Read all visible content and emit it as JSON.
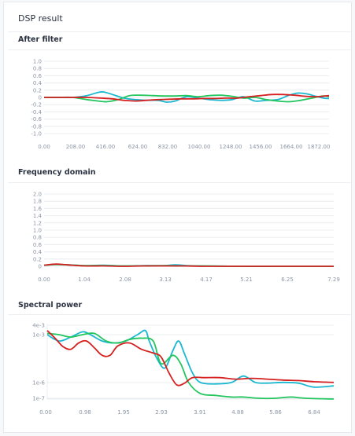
{
  "panel": {
    "title": "DSP result"
  },
  "colors": {
    "series1": "#1ab8d0",
    "series2": "#22c55e",
    "series3": "#d61f1f",
    "grid": "#e9ecef",
    "tick": "#8c95a5"
  },
  "charts": [
    {
      "title": "After filter",
      "chart_data": {
        "type": "line",
        "x_ticks": [
          "0.00",
          "208.00",
          "416.00",
          "624.00",
          "832.00",
          "1040.00",
          "1248.00",
          "1456.00",
          "1664.00",
          "1872.00"
        ],
        "y_ticks": [
          "1.0",
          "0.8",
          "0.6",
          "0.4",
          "0.2",
          "0",
          "-0.2",
          "-0.4",
          "-0.6",
          "-0.8",
          "-1.0"
        ],
        "xlim": [
          0,
          2000
        ],
        "ylim": [
          -1,
          1
        ],
        "series": [
          {
            "color": "#1ab8d0",
            "x": [
              0,
              100,
              200,
              300,
              380,
              420,
              480,
              560,
              640,
              720,
              800,
              860,
              920,
              1000,
              1080,
              1160,
              1240,
              1320,
              1400,
              1480,
              1560,
              1640,
              1720,
              1780,
              1840,
              1900,
              1960,
              2000
            ],
            "y": [
              0,
              0,
              0,
              0.05,
              0.14,
              0.15,
              0.08,
              -0.02,
              -0.06,
              -0.08,
              -0.08,
              -0.13,
              -0.1,
              0.02,
              -0.02,
              -0.06,
              -0.08,
              -0.06,
              0.02,
              -0.1,
              -0.08,
              -0.06,
              0.06,
              0.12,
              0.1,
              0.04,
              -0.02,
              -0.03
            ]
          },
          {
            "color": "#22c55e",
            "x": [
              0,
              100,
              200,
              300,
              380,
              440,
              520,
              600,
              680,
              760,
              840,
              920,
              1000,
              1080,
              1160,
              1240,
              1320,
              1400,
              1480,
              1560,
              1640,
              1720,
              1800,
              1880,
              1960,
              2000
            ],
            "y": [
              0,
              0,
              0,
              -0.06,
              -0.1,
              -0.12,
              -0.06,
              0.05,
              0.06,
              0.05,
              0.04,
              0.04,
              0.05,
              0.02,
              0.05,
              0.06,
              0.03,
              -0.02,
              0.0,
              -0.06,
              -0.1,
              -0.12,
              -0.08,
              -0.02,
              0.04,
              0.02
            ]
          },
          {
            "color": "#d61f1f",
            "x": [
              0,
              100,
              200,
              300,
              400,
              480,
              560,
              640,
              720,
              800,
              880,
              960,
              1040,
              1120,
              1200,
              1280,
              1360,
              1440,
              1520,
              1600,
              1680,
              1760,
              1840,
              1920,
              2000
            ],
            "y": [
              0,
              0,
              0,
              0,
              -0.02,
              -0.04,
              -0.08,
              -0.1,
              -0.08,
              -0.06,
              -0.05,
              -0.04,
              -0.04,
              -0.03,
              -0.03,
              -0.02,
              -0.02,
              0.02,
              0.05,
              0.08,
              0.08,
              0.06,
              0.03,
              0.02,
              0.05
            ]
          }
        ]
      }
    },
    {
      "title": "Frequency domain",
      "chart_data": {
        "type": "line",
        "x_ticks": [
          "0.00",
          "1.04",
          "2.08",
          "3.13",
          "4.17",
          "5.21",
          "6.25",
          "7.29"
        ],
        "y_ticks": [
          "2.0",
          "1.8",
          "1.6",
          "1.4",
          "1.2",
          "1.0",
          "0.8",
          "0.6",
          "0.4",
          "0.2",
          "0"
        ],
        "xlim": [
          0,
          7.29
        ],
        "ylim": [
          0,
          2
        ],
        "series": [
          {
            "color": "#1ab8d0",
            "x": [
              0,
              0.3,
              0.6,
              1.0,
              1.5,
              2.0,
              2.5,
              3.0,
              3.3,
              3.6,
              4.0,
              5.0,
              6.0,
              7.29
            ],
            "y": [
              0.03,
              0.05,
              0.04,
              0.02,
              0.03,
              0.01,
              0.02,
              0.02,
              0.04,
              0.02,
              0.01,
              0.0,
              0.0,
              0.0
            ]
          },
          {
            "color": "#22c55e",
            "x": [
              0,
              0.3,
              0.6,
              1.0,
              1.5,
              2.0,
              2.5,
              3.0,
              3.5,
              4.0,
              5.0,
              6.0,
              7.29
            ],
            "y": [
              0.03,
              0.05,
              0.04,
              0.02,
              0.02,
              0.01,
              0.01,
              0.02,
              0.01,
              0.01,
              0.0,
              0.0,
              0.0
            ]
          },
          {
            "color": "#d61f1f",
            "x": [
              0,
              0.3,
              0.6,
              1.0,
              1.5,
              2.0,
              2.5,
              3.0,
              3.5,
              4.0,
              5.0,
              6.0,
              7.29
            ],
            "y": [
              0.03,
              0.06,
              0.04,
              0.01,
              0.01,
              0.0,
              0.01,
              0.01,
              0.01,
              0.0,
              0.0,
              0.0,
              0.0
            ]
          }
        ]
      }
    },
    {
      "title": "Spectral power",
      "chart_data": {
        "type": "line",
        "yscale": "log",
        "x_ticks": [
          "0.00",
          "0.98",
          "1.95",
          "2.93",
          "3.91",
          "4.88",
          "5.86",
          "6.84"
        ],
        "y_ticks": [
          "4e-3",
          "1e-3",
          "1e-6",
          "1e-7"
        ],
        "xlim": [
          0,
          7.3
        ],
        "series": [
          {
            "color": "#1ab8d0",
            "x": [
              0,
              0.3,
              0.6,
              0.9,
              1.1,
              1.4,
              1.7,
              2.0,
              2.3,
              2.5,
              2.6,
              2.8,
              3.0,
              3.2,
              3.35,
              3.5,
              3.7,
              3.9,
              4.3,
              4.7,
              5.0,
              5.3,
              5.6,
              6.0,
              6.4,
              6.8,
              7.3
            ],
            "y": [
              0.001,
              0.0004,
              0.0007,
              0.0015,
              0.001,
              0.0004,
              0.0003,
              0.0004,
              0.001,
              0.0018,
              0.0004,
              3e-05,
              8e-06,
              0.0001,
              0.0004,
              6e-05,
              4e-06,
              1e-06,
              8e-07,
              1e-06,
              2.5e-06,
              1e-06,
              9e-07,
              1e-06,
              9e-07,
              5e-07,
              6e-07
            ]
          },
          {
            "color": "#22c55e",
            "x": [
              0,
              0.3,
              0.6,
              0.9,
              1.2,
              1.5,
              1.8,
              2.1,
              2.4,
              2.7,
              2.9,
              3.2,
              3.4,
              3.6,
              3.9,
              4.3,
              4.7,
              5.0,
              5.4,
              5.8,
              6.2,
              6.6,
              7.3
            ],
            "y": [
              0.0012,
              0.001,
              0.0007,
              0.001,
              0.0012,
              0.0004,
              0.0003,
              0.0005,
              0.0006,
              0.0004,
              1.5e-05,
              5e-05,
              1.5e-05,
              1e-06,
              2e-07,
              1.5e-07,
              1.2e-07,
              1.2e-07,
              1e-07,
              1e-07,
              1.2e-07,
              1e-07,
              9e-08
            ]
          },
          {
            "color": "#d61f1f",
            "x": [
              0,
              0.2,
              0.4,
              0.6,
              0.8,
              1.0,
              1.2,
              1.4,
              1.6,
              1.8,
              2.1,
              2.4,
              2.7,
              2.9,
              3.1,
              3.3,
              3.5,
              3.7,
              4.0,
              4.4,
              4.8,
              5.2,
              5.6,
              6.0,
              6.4,
              6.8,
              7.3
            ],
            "y": [
              0.0018,
              0.0006,
              0.00018,
              0.00012,
              0.0003,
              0.0004,
              0.00015,
              5e-05,
              5e-05,
              0.0002,
              0.0003,
              0.00012,
              7e-05,
              4e-05,
              4e-06,
              7e-07,
              9e-07,
              2e-06,
              2e-06,
              2e-06,
              1.6e-06,
              1.8e-06,
              1.6e-06,
              1.4e-06,
              1.3e-06,
              1.1e-06,
              1e-06
            ]
          }
        ]
      }
    }
  ]
}
